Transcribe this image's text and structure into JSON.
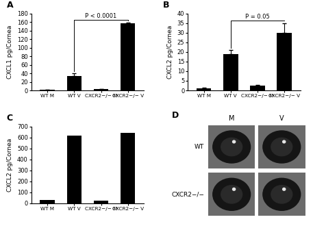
{
  "chart_data": [
    {
      "type": "bar",
      "title": "A",
      "ylabel": "CXCL1 pg/Cornea",
      "categories": [
        "WT M",
        "WT V",
        "CXCR2−/− M",
        "CXCR2−/− V"
      ],
      "values": [
        1,
        34,
        3,
        157
      ],
      "errors": [
        0.5,
        6,
        1,
        2
      ],
      "color": "#000000",
      "ylim": [
        0,
        180
      ],
      "yticks": [
        0,
        20,
        40,
        60,
        80,
        100,
        120,
        140,
        160,
        180
      ],
      "annotations": [
        {
          "text": "P < 0.0001",
          "from": "WT V",
          "to": "CXCR2−/− V"
        }
      ]
    },
    {
      "type": "bar",
      "title": "B",
      "ylabel": "CXCL2 pg/Cornea",
      "categories": [
        "WT M",
        "WT V",
        "CXCR2−/− M",
        "CXCR2−/− V"
      ],
      "values": [
        1.2,
        19,
        2.5,
        30
      ],
      "errors": [
        0.2,
        2,
        0.5,
        5
      ],
      "color": "#000000",
      "ylim": [
        0,
        40
      ],
      "yticks": [
        0,
        5,
        10,
        15,
        20,
        25,
        30,
        35,
        40
      ],
      "annotations": [
        {
          "text": "P = 0.05",
          "from": "WT V",
          "to": "CXCR2−/− V"
        }
      ]
    },
    {
      "type": "bar",
      "title": "C",
      "ylabel": "CXCL2 pg/Cornea",
      "categories": [
        "WT M",
        "WT V",
        "CXCR2−/− M",
        "CXCR2−/− V"
      ],
      "values": [
        30,
        615,
        25,
        645
      ],
      "color": "#000000",
      "ylim": [
        0,
        700
      ],
      "yticks": [
        0,
        100,
        200,
        300,
        400,
        500,
        600,
        700
      ]
    }
  ],
  "image_panel": {
    "title": "D",
    "columns": [
      "M",
      "V"
    ],
    "rows": [
      "WT",
      "CXCR2−/−"
    ]
  }
}
